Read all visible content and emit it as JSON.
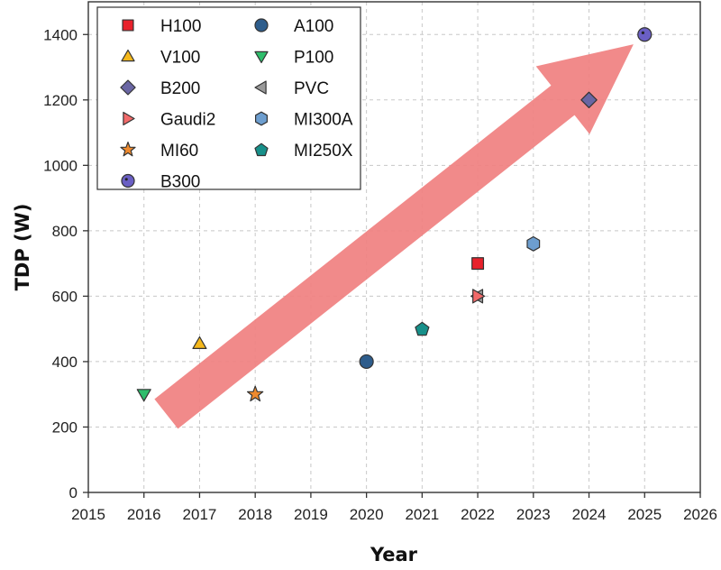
{
  "chart_data": {
    "type": "scatter",
    "xlabel": "Year",
    "ylabel": "TDP (W)",
    "xlim": [
      2015,
      2026
    ],
    "ylim": [
      0,
      1500
    ],
    "xticks": [
      2015,
      2016,
      2017,
      2018,
      2019,
      2020,
      2021,
      2022,
      2023,
      2024,
      2025,
      2026
    ],
    "yticks": [
      0,
      200,
      400,
      600,
      800,
      1000,
      1200,
      1400
    ],
    "grid": true,
    "legend_position": "top-left",
    "trend_arrow": {
      "from": [
        2016.4,
        240
      ],
      "to": [
        2024.8,
        1370
      ],
      "color": "#f08080"
    },
    "series": [
      {
        "name": "H100",
        "marker": "square",
        "color": "#e8212b",
        "points": [
          [
            2022,
            700
          ]
        ]
      },
      {
        "name": "A100",
        "marker": "circle",
        "color": "#2e5d8c",
        "points": [
          [
            2020,
            400
          ]
        ]
      },
      {
        "name": "V100",
        "marker": "triangle-up",
        "color": "#f5b81c",
        "points": [
          [
            2017,
            455
          ]
        ]
      },
      {
        "name": "P100",
        "marker": "triangle-down",
        "color": "#2ebd6b",
        "points": [
          [
            2016,
            300
          ]
        ]
      },
      {
        "name": "B200",
        "marker": "diamond",
        "color": "#6a66a3",
        "points": [
          [
            2024,
            1200
          ]
        ]
      },
      {
        "name": "PVC",
        "marker": "triangle-left",
        "color": "#9a9a9a",
        "points": [
          [
            2022,
            600
          ]
        ]
      },
      {
        "name": "Gaudi2",
        "marker": "triangle-right",
        "color": "#f26a6a",
        "points": [
          [
            2022,
            600
          ]
        ]
      },
      {
        "name": "MI300A",
        "marker": "hexagon",
        "color": "#6d9ecf",
        "points": [
          [
            2023,
            760
          ]
        ]
      },
      {
        "name": "MI60",
        "marker": "star",
        "color": "#ef8a2e",
        "points": [
          [
            2018,
            300
          ]
        ]
      },
      {
        "name": "MI250X",
        "marker": "pentagon",
        "color": "#17908a",
        "points": [
          [
            2021,
            500
          ]
        ]
      },
      {
        "name": "B300",
        "marker": "circle-dot",
        "color": "#6a5fc4",
        "points": [
          [
            2025,
            1400
          ]
        ]
      }
    ],
    "legend_order": [
      "H100",
      "A100",
      "V100",
      "P100",
      "B200",
      "PVC",
      "Gaudi2",
      "MI300A",
      "MI60",
      "MI250X",
      "B300"
    ]
  }
}
